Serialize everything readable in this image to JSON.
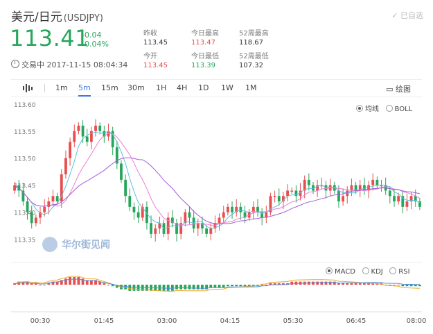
{
  "header": {
    "pair_cn": "美元/日元",
    "pair_code": "(USDJPY)",
    "fav_label": "已自选",
    "price": "113.41",
    "change": "-0.04",
    "change_pct": "-0.04%",
    "status": "交易中 2017-11-15 08:04:34"
  },
  "stats": [
    {
      "label": "昨收",
      "value": "113.45",
      "color": "#333333"
    },
    {
      "label": "今日最高",
      "value": "113.47",
      "color": "#e84e4e"
    },
    {
      "label": "52周最高",
      "value": "118.67",
      "color": "#333333"
    },
    {
      "label": "今开",
      "value": "113.45",
      "color": "#e84e4e"
    },
    {
      "label": "今日最低",
      "value": "113.39",
      "color": "#26a65b"
    },
    {
      "label": "52周最低",
      "value": "107.32",
      "color": "#333333"
    }
  ],
  "toolbar": {
    "tabs": [
      "1m",
      "5m",
      "15m",
      "30m",
      "1H",
      "4H",
      "1D",
      "1W",
      "1M"
    ],
    "active": "5m",
    "draw_label": "绘图"
  },
  "legend_main": [
    "均线",
    "BOLL"
  ],
  "legend_sub": [
    "MACD",
    "KDJ",
    "RSI"
  ],
  "watermark": "华尔街见闻",
  "colors": {
    "up": "#e84e4e",
    "down": "#26a65b",
    "ma5": "#5bc0de",
    "ma10": "#ee7ad6",
    "ma20": "#a35bd6",
    "macd_dif": "#f5a623",
    "macd_dea": "#4a90e2"
  },
  "chart_data": {
    "type": "candlestick",
    "y_ticks": [
      "113.60",
      "113.55",
      "113.50",
      "113.45",
      "113.40",
      "113.35"
    ],
    "ylim": [
      113.32,
      113.61
    ],
    "x_ticks": [
      "00:30",
      "01:45",
      "03:00",
      "04:15",
      "05:30",
      "06:45",
      "08:00"
    ],
    "close": [
      113.45,
      113.44,
      113.42,
      113.4,
      113.38,
      113.39,
      113.4,
      113.41,
      113.42,
      113.43,
      113.42,
      113.47,
      113.5,
      113.53,
      113.55,
      113.56,
      113.54,
      113.53,
      113.55,
      113.56,
      113.55,
      113.54,
      113.55,
      113.52,
      113.49,
      113.46,
      113.43,
      113.41,
      113.4,
      113.39,
      113.41,
      113.38,
      113.36,
      113.37,
      113.38,
      113.36,
      113.39,
      113.38,
      113.36,
      113.38,
      113.4,
      113.39,
      113.37,
      113.38,
      113.37,
      113.36,
      113.37,
      113.38,
      113.39,
      113.4,
      113.41,
      113.4,
      113.41,
      113.4,
      113.39,
      113.4,
      113.41,
      113.4,
      113.39,
      113.4,
      113.43,
      113.43,
      113.42,
      113.43,
      113.44,
      113.44,
      113.43,
      113.44,
      113.46,
      113.45,
      113.44,
      113.45,
      113.45,
      113.44,
      113.45,
      113.44,
      113.42,
      113.43,
      113.44,
      113.45,
      113.44,
      113.45,
      113.44,
      113.45,
      113.46,
      113.45,
      113.45,
      113.44,
      113.43,
      113.42,
      113.43,
      113.41,
      113.42,
      113.43,
      113.42,
      113.41
    ],
    "macd": [
      1,
      2,
      2,
      2,
      1,
      1,
      0,
      0,
      1,
      2,
      2,
      3,
      4,
      5,
      5,
      5,
      4,
      3,
      3,
      3,
      2,
      1,
      0,
      -1,
      -2,
      -3,
      -3,
      -4,
      -4,
      -4,
      -4,
      -4,
      -4,
      -4,
      -4,
      -4,
      -4,
      -4,
      -3,
      -3,
      -3,
      -3,
      -3,
      -3,
      -3,
      -3,
      -2,
      -2,
      -2,
      -2,
      -1,
      -1,
      -1,
      -1,
      -1,
      -1,
      -1,
      -1,
      0,
      0,
      1,
      1,
      1,
      1,
      1,
      2,
      2,
      2,
      2,
      2,
      2,
      2,
      2,
      2,
      2,
      2,
      1,
      1,
      1,
      1,
      1,
      1,
      1,
      1,
      1,
      1,
      1,
      0,
      0,
      0,
      0,
      -1,
      -1,
      -1,
      -1,
      -1
    ]
  }
}
